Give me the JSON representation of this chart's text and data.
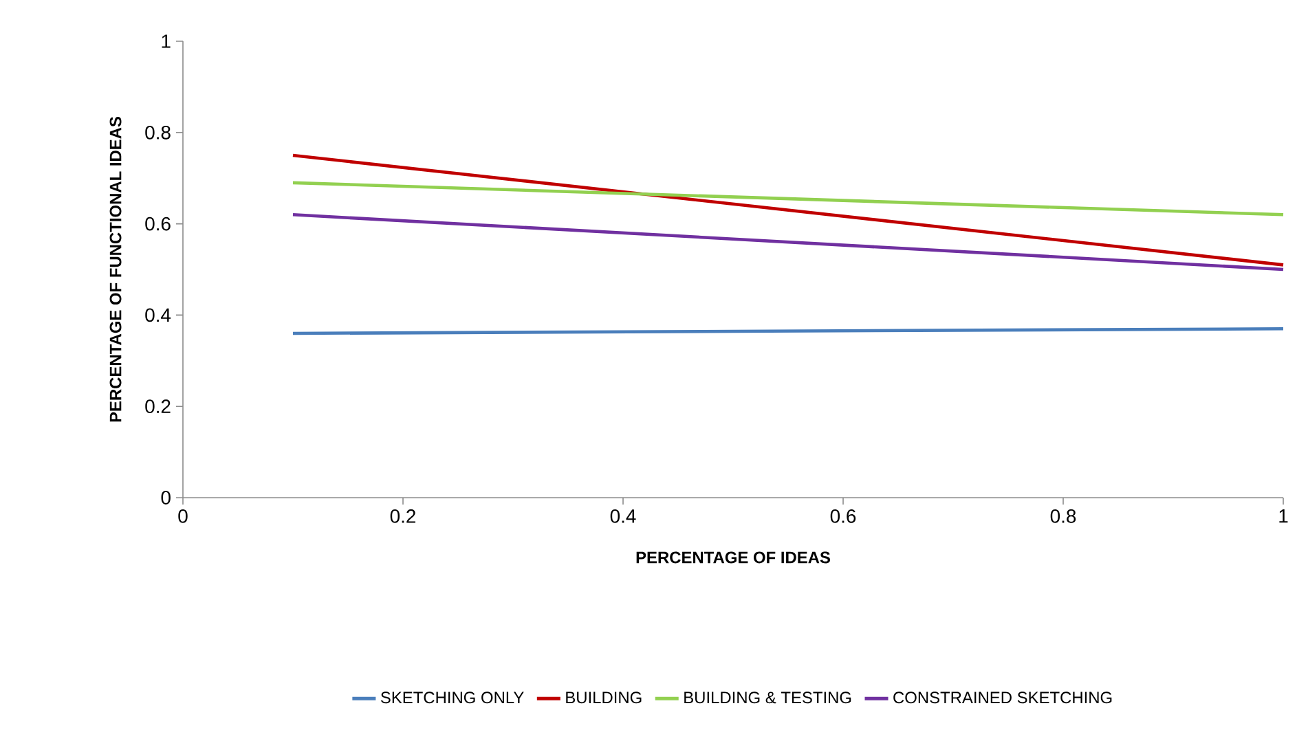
{
  "chart_data": {
    "type": "line",
    "xlabel": "PERCENTAGE OF IDEAS",
    "ylabel": "PERCENTAGE OF FUNCTIONAL IDEAS",
    "x": [
      0.1,
      1
    ],
    "series": [
      {
        "name": "SKETCHING ONLY",
        "color": "#4a7ebb",
        "values": [
          0.36,
          0.37
        ]
      },
      {
        "name": "BUILDING",
        "color": "#c00000",
        "values": [
          0.75,
          0.51
        ]
      },
      {
        "name": "BUILDING & TESTING",
        "color": "#92d050",
        "values": [
          0.69,
          0.62
        ]
      },
      {
        "name": "CONSTRAINED SKETCHING",
        "color": "#7030a0",
        "values": [
          0.62,
          0.5
        ]
      }
    ],
    "xlim": [
      0,
      1
    ],
    "xticks": [
      0,
      0.2,
      0.4,
      0.6,
      0.8,
      1
    ],
    "ylim": [
      0,
      1
    ],
    "yticks": [
      0,
      0.2,
      0.4,
      0.6,
      0.8,
      1
    ],
    "legend": "bottom"
  }
}
